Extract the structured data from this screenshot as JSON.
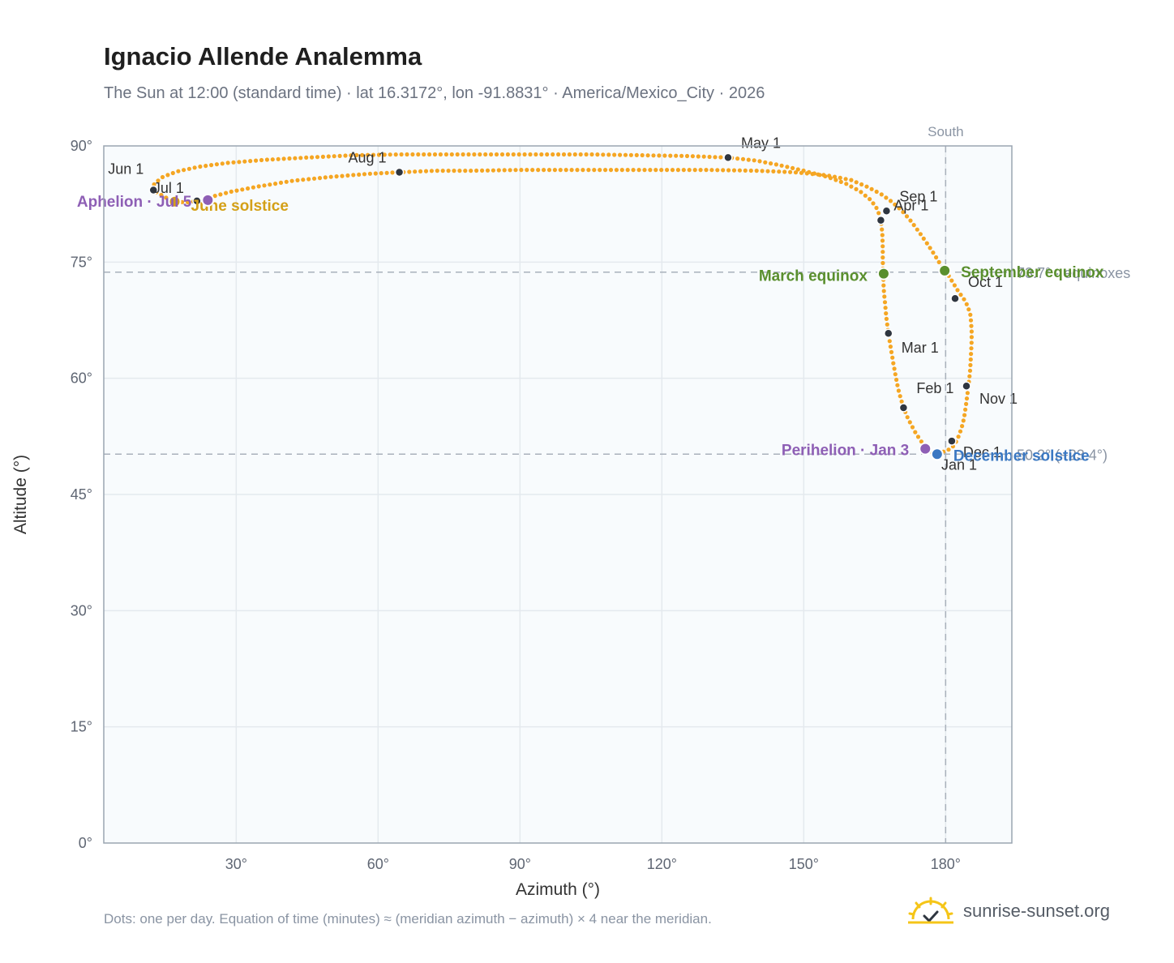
{
  "header": {
    "title": "Ignacio Allende Analemma",
    "subtitle": "The Sun at 12:00 (standard time) · lat 16.3172°, lon -91.8831° · America/Mexico_City · 2026"
  },
  "footer": {
    "note": "Dots: one per day. Equation of time (minutes) ≈ (meridian azimuth − azimuth) × 4 near the meridian.",
    "brand": "sunrise-sunset.org"
  },
  "colors": {
    "dots": "#f5a623",
    "month_marker": "#2f3640",
    "equinox": "#5a8f2e",
    "solstice_june": "#d4a017",
    "solstice_december": "#3b78c2",
    "apsis": "#8e5fb5",
    "plot_bg": "#f8fbfd",
    "grid": "#e4e9ee",
    "frame": "#9aa5b1",
    "ref_line": "#a9b1bb"
  },
  "chart_data": {
    "type": "scatter",
    "xlabel": "Azimuth (°)",
    "ylabel": "Altitude (°)",
    "xlim": [
      2,
      194
    ],
    "ylim": [
      0,
      90
    ],
    "x_ticks": [
      30,
      60,
      90,
      120,
      150,
      180
    ],
    "x_tick_labels": [
      "30°",
      "60°",
      "90°",
      "120°",
      "150°",
      "180°"
    ],
    "y_ticks": [
      0,
      15,
      30,
      45,
      60,
      75,
      90
    ],
    "y_tick_labels": [
      "0°",
      "15°",
      "30°",
      "45°",
      "60°",
      "75°",
      "90°"
    ],
    "grid": true,
    "series": [
      {
        "role": "daily_path",
        "points": [
          [
            178.4,
            50.3
          ],
          [
            178.9,
            50.4
          ],
          [
            179.4,
            50.5
          ],
          [
            179.9,
            50.6
          ],
          [
            180.3,
            50.7
          ],
          [
            180.7,
            50.8
          ],
          [
            181.1,
            50.9
          ],
          [
            181.4,
            51.1
          ],
          [
            181.7,
            51.3
          ],
          [
            182.0,
            51.6
          ],
          [
            182.3,
            51.9
          ],
          [
            182.6,
            52.3
          ],
          [
            182.9,
            52.8
          ],
          [
            183.2,
            53.3
          ],
          [
            183.5,
            53.9
          ],
          [
            183.8,
            54.6
          ],
          [
            184.0,
            55.3
          ],
          [
            184.2,
            56.1
          ],
          [
            184.4,
            57.0
          ],
          [
            184.6,
            57.9
          ],
          [
            184.8,
            58.9
          ],
          [
            185.0,
            60.0
          ],
          [
            185.2,
            61.2
          ],
          [
            185.3,
            62.4
          ],
          [
            185.4,
            63.6
          ],
          [
            185.5,
            64.8
          ],
          [
            185.5,
            66.0
          ],
          [
            185.4,
            67.2
          ],
          [
            185.2,
            68.3
          ],
          [
            184.6,
            69.4
          ],
          [
            183.8,
            70.3
          ],
          [
            182.8,
            71.1
          ],
          [
            181.8,
            72.1
          ],
          [
            180.7,
            73.2
          ],
          [
            179.8,
            73.9
          ],
          [
            178.8,
            74.8
          ],
          [
            177.6,
            76.0
          ],
          [
            176.2,
            77.3
          ],
          [
            174.6,
            78.7
          ],
          [
            172.8,
            80.2
          ],
          [
            170.8,
            81.6
          ],
          [
            168.6,
            82.8
          ],
          [
            166.3,
            83.8
          ],
          [
            163.5,
            84.7
          ],
          [
            160.0,
            85.6
          ],
          [
            155.0,
            86.2
          ],
          [
            148.0,
            86.6
          ],
          [
            140.0,
            86.8
          ],
          [
            130.0,
            86.9
          ],
          [
            120.0,
            86.9
          ],
          [
            110.0,
            86.9
          ],
          [
            100.0,
            86.9
          ],
          [
            90.0,
            86.9
          ],
          [
            80.0,
            86.8
          ],
          [
            72.0,
            86.8
          ],
          [
            64.5,
            86.6
          ],
          [
            58.0,
            86.4
          ],
          [
            50.0,
            86.0
          ],
          [
            42.0,
            85.5
          ],
          [
            35.0,
            84.8
          ],
          [
            29.0,
            84.1
          ],
          [
            24.5,
            83.4
          ],
          [
            21.7,
            82.9
          ],
          [
            19.5,
            82.7
          ],
          [
            17.5,
            82.8
          ],
          [
            15.5,
            83.2
          ],
          [
            13.5,
            83.9
          ],
          [
            12.1,
            84.4
          ],
          [
            12.8,
            85.2
          ],
          [
            14.5,
            86.0
          ],
          [
            17.5,
            86.7
          ],
          [
            22.0,
            87.3
          ],
          [
            28.0,
            87.8
          ],
          [
            36.0,
            88.2
          ],
          [
            45.0,
            88.5
          ],
          [
            55.0,
            88.8
          ],
          [
            65.0,
            88.9
          ],
          [
            75.0,
            88.9
          ],
          [
            85.0,
            88.9
          ],
          [
            95.0,
            88.9
          ],
          [
            105.0,
            88.9
          ],
          [
            115.0,
            88.8
          ],
          [
            125.0,
            88.7
          ],
          [
            134.0,
            88.5
          ],
          [
            140.0,
            88.1
          ],
          [
            145.0,
            87.5
          ],
          [
            150.0,
            86.8
          ],
          [
            155.0,
            86.0
          ],
          [
            159.0,
            85.1
          ],
          [
            162.0,
            84.1
          ],
          [
            164.2,
            83.0
          ],
          [
            165.6,
            81.8
          ],
          [
            166.3,
            80.4
          ],
          [
            166.6,
            78.8
          ],
          [
            166.7,
            77.0
          ],
          [
            166.7,
            75.2
          ],
          [
            166.8,
            73.5
          ],
          [
            166.9,
            71.6
          ],
          [
            167.2,
            69.6
          ],
          [
            167.5,
            67.6
          ],
          [
            167.9,
            65.8
          ],
          [
            168.4,
            63.9
          ],
          [
            168.9,
            62.1
          ],
          [
            169.4,
            60.4
          ],
          [
            169.9,
            58.8
          ],
          [
            170.5,
            57.4
          ],
          [
            171.1,
            56.2
          ],
          [
            171.9,
            55.0
          ],
          [
            172.8,
            53.9
          ],
          [
            173.8,
            52.8
          ],
          [
            174.9,
            51.8
          ],
          [
            175.7,
            50.9
          ],
          [
            176.5,
            50.5
          ],
          [
            177.4,
            50.3
          ],
          [
            178.4,
            50.3
          ]
        ]
      },
      {
        "role": "month_markers",
        "points": [
          {
            "label": "Jan 1",
            "x": 178.4,
            "y": 50.3
          },
          {
            "label": "Feb 1",
            "x": 171.1,
            "y": 56.2
          },
          {
            "label": "Mar 1",
            "x": 167.9,
            "y": 65.8
          },
          {
            "label": "Apr 1",
            "x": 166.3,
            "y": 80.4
          },
          {
            "label": "May 1",
            "x": 134.0,
            "y": 88.5
          },
          {
            "label": "Jun 1",
            "x": 12.5,
            "y": 84.3
          },
          {
            "label": "Jul 1",
            "x": 21.7,
            "y": 82.9
          },
          {
            "label": "Aug 1",
            "x": 64.5,
            "y": 86.6
          },
          {
            "label": "Sep 1",
            "x": 167.5,
            "y": 81.6
          },
          {
            "label": "Oct 1",
            "x": 182.0,
            "y": 70.3
          },
          {
            "label": "Nov 1",
            "x": 184.4,
            "y": 59.0
          },
          {
            "label": "Dec 1",
            "x": 181.3,
            "y": 51.9
          }
        ]
      },
      {
        "role": "events",
        "points": [
          {
            "label": "March equinox",
            "x": 166.9,
            "y": 73.5,
            "kind": "equinox"
          },
          {
            "label": "September equinox",
            "x": 179.8,
            "y": 73.9,
            "kind": "equinox"
          },
          {
            "label": "June solstice",
            "x": 17.0,
            "y": 82.8,
            "kind": "solstice_june"
          },
          {
            "label": "December solstice",
            "x": 178.2,
            "y": 50.2,
            "kind": "solstice_december"
          },
          {
            "label": "Perihelion · Jan 3",
            "x": 175.7,
            "y": 50.9,
            "kind": "apsis"
          },
          {
            "label": "Aphelion · Jul 5",
            "x": 24.0,
            "y": 83.0,
            "kind": "apsis"
          }
        ]
      }
    ],
    "reference_lines": [
      {
        "orientation": "horizontal",
        "y": 73.7,
        "label": "73.7° · equinoxes"
      },
      {
        "orientation": "horizontal",
        "y": 50.2,
        "label": "50.2° (−23.4°)"
      },
      {
        "orientation": "vertical",
        "x": 180,
        "label": "South"
      }
    ]
  }
}
